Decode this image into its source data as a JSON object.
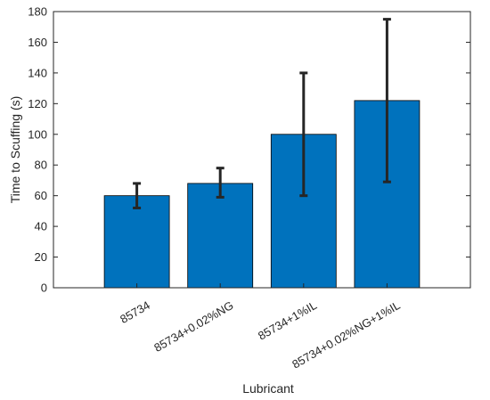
{
  "chart_data": {
    "type": "bar",
    "categories": [
      "85734",
      "85734+0.02%NG",
      "85734+1%IL",
      "85734+0.02%NG+1%IL"
    ],
    "values": [
      60,
      68,
      100,
      122
    ],
    "error_low": [
      52,
      59,
      60,
      69
    ],
    "error_high": [
      68,
      78,
      140,
      175
    ],
    "xlabel": "Lubricant",
    "ylabel": "Time to Scuffing (s)",
    "ylim": [
      0,
      180
    ],
    "yticks": [
      0,
      20,
      40,
      60,
      80,
      100,
      120,
      140,
      160,
      180
    ],
    "bar_color": "#0072BD",
    "error_color": "#262626",
    "grid": false,
    "legend": "none"
  }
}
